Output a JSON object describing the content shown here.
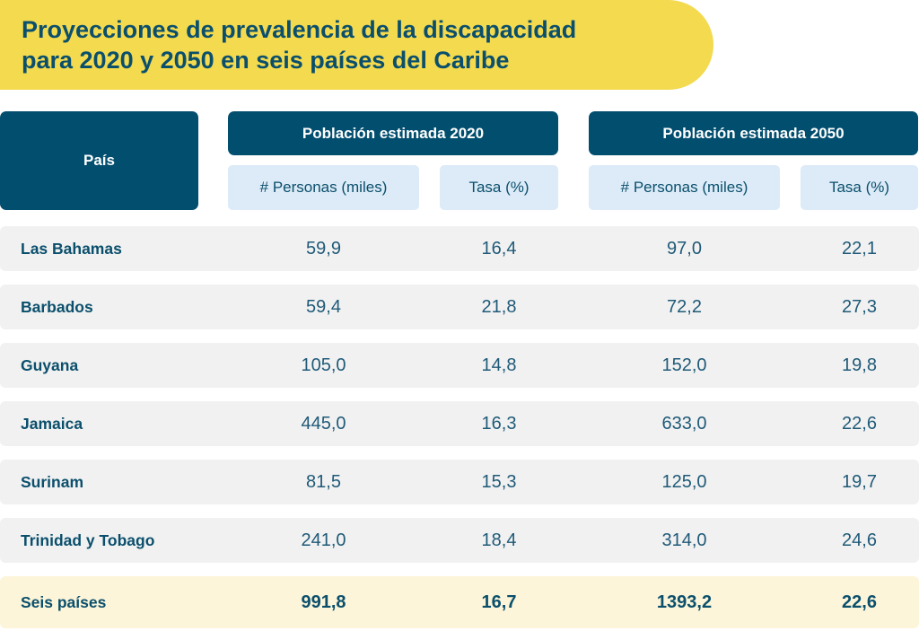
{
  "chart_data": {
    "type": "table",
    "title_lines": [
      "Proyecciones de prevalencia de la discapacidad",
      "para 2020 y 2050 en seis países del Caribe"
    ],
    "header": {
      "country": "País",
      "group_2020": "Población estimada 2020",
      "group_2050": "Población estimada 2050",
      "persons": "# Personas (miles)",
      "rate": "Tasa (%)"
    },
    "rows": [
      {
        "country": "Las Bahamas",
        "values": [
          "59,9",
          "16,4",
          "97,0",
          "22,1"
        ]
      },
      {
        "country": "Barbados",
        "values": [
          "59,4",
          "21,8",
          "72,2",
          "27,3"
        ]
      },
      {
        "country": "Guyana",
        "values": [
          "105,0",
          "14,8",
          "152,0",
          "19,8"
        ]
      },
      {
        "country": "Jamaica",
        "values": [
          "445,0",
          "16,3",
          "633,0",
          "22,6"
        ]
      },
      {
        "country": "Surinam",
        "values": [
          "81,5",
          "15,3",
          "125,0",
          "19,7"
        ]
      },
      {
        "country": "Trinidad y Tobago",
        "values": [
          "241,0",
          "18,4",
          "314,0",
          "24,6"
        ]
      }
    ],
    "total": {
      "country": "Seis países",
      "values": [
        "991,8",
        "16,7",
        "1393,2",
        "22,6"
      ]
    },
    "colors": {
      "banner": "#F3DA4F",
      "header": "#024E6E",
      "subheader": "#DCEBF7",
      "row": "#F1F1F1",
      "total_row": "#FCF5D9",
      "text": "#0B4F6C"
    }
  }
}
